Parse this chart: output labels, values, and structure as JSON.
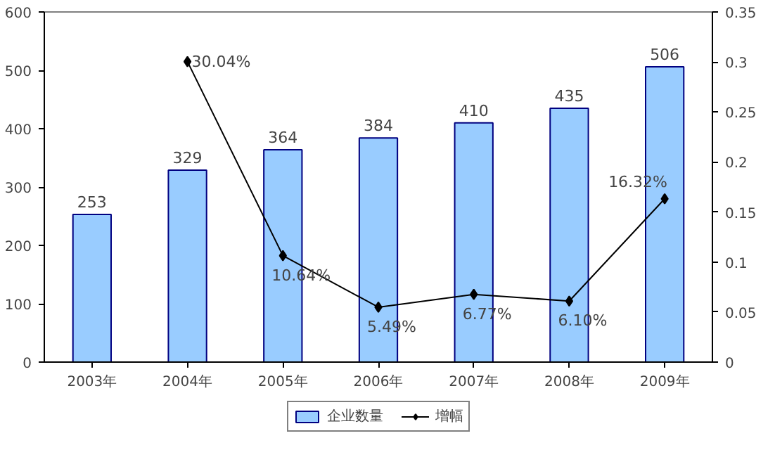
{
  "chart_data": {
    "type": "bar",
    "categories": [
      "2003年",
      "2004年",
      "2005年",
      "2006年",
      "2007年",
      "2008年",
      "2009年"
    ],
    "series": [
      {
        "name": "企业数量",
        "color": "#99ccff",
        "values": [
          253,
          329,
          364,
          384,
          410,
          435,
          506
        ]
      },
      {
        "name": "增幅",
        "type": "line",
        "color": "#000000",
        "axis": "y2",
        "marker": "diamond",
        "values": [
          null,
          0.3004,
          0.1064,
          0.0549,
          0.0677,
          0.061,
          0.1632
        ],
        "value_labels": [
          null,
          "30.04%",
          "10.64%",
          "5.49%",
          "6.77%",
          "6.10%",
          "16.32%"
        ]
      }
    ],
    "data_labels": true,
    "ylim": [
      0,
      600
    ],
    "yticks": [
      0,
      100,
      200,
      300,
      400,
      500,
      600
    ],
    "y2lim": [
      0,
      0.35
    ],
    "y2ticks": [
      0,
      0.05,
      0.1,
      0.15,
      0.2,
      0.25,
      0.3,
      0.35
    ],
    "legend": "bottom"
  }
}
